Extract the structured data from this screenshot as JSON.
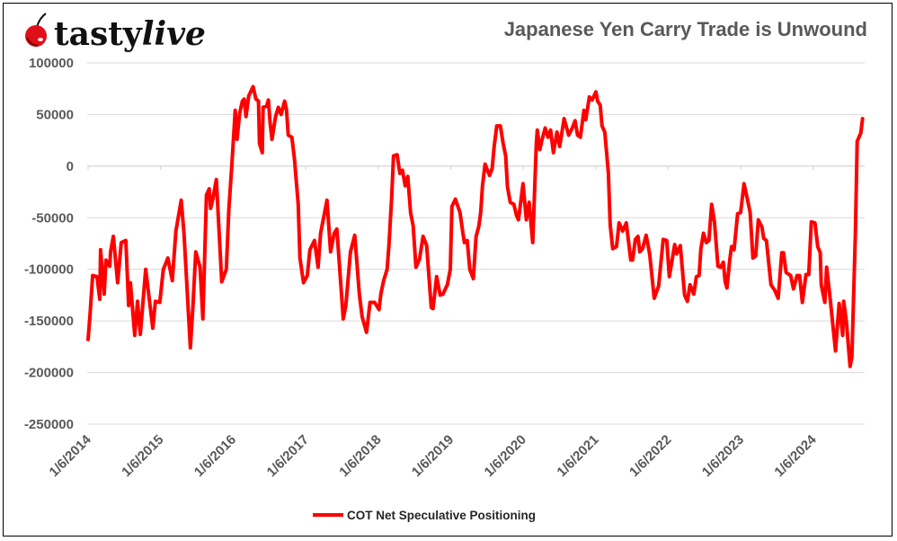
{
  "logo": {
    "text": "tastylive",
    "part1": "tasty",
    "part2": "live"
  },
  "colors": {
    "series": "#ff0000",
    "grid": "#d9d9d9",
    "text": "#595959"
  },
  "chart_data": {
    "type": "line",
    "title": "Japanese Yen Carry Trade is Unwound",
    "xlabel": "",
    "ylabel": "",
    "ylim": [
      -250000,
      100000
    ],
    "yticks": [
      100000,
      50000,
      0,
      -50000,
      -100000,
      -150000,
      -200000,
      -250000
    ],
    "ytick_labels": [
      "100000",
      "50000",
      "0",
      "-50000",
      "-100000",
      "-150000",
      "-200000",
      "-250000"
    ],
    "xlim": [
      "2014-01-06",
      "2024-09-10"
    ],
    "xtick_dates": [
      "2014-01-06",
      "2015-01-06",
      "2016-01-06",
      "2017-01-06",
      "2018-01-06",
      "2019-01-06",
      "2020-01-06",
      "2021-01-06",
      "2022-01-06",
      "2023-01-06",
      "2024-01-06"
    ],
    "xtick_labels": [
      "1/6/2014",
      "1/6/2015",
      "1/6/2016",
      "1/6/2017",
      "1/6/2018",
      "1/6/2019",
      "1/6/2020",
      "1/6/2021",
      "1/6/2022",
      "1/6/2023",
      "1/6/2024"
    ],
    "grid": "horizontal",
    "legend": "bottom",
    "series": [
      {
        "name": "COT Net Speculative Positioning",
        "color": "#ff0000",
        "points": [
          [
            "2014-01-06",
            -168000
          ],
          [
            "2014-01-15",
            -146000
          ],
          [
            "2014-01-29",
            -106000
          ],
          [
            "2014-02-20",
            -107000
          ],
          [
            "2014-03-06",
            -129000
          ],
          [
            "2014-03-10",
            -81000
          ],
          [
            "2014-03-28",
            -124000
          ],
          [
            "2014-04-06",
            -91000
          ],
          [
            "2014-04-25",
            -97000
          ],
          [
            "2014-04-29",
            -83000
          ],
          [
            "2014-05-13",
            -68000
          ],
          [
            "2014-06-04",
            -113000
          ],
          [
            "2014-06-22",
            -74000
          ],
          [
            "2014-07-15",
            -72000
          ],
          [
            "2014-07-29",
            -135000
          ],
          [
            "2014-08-07",
            -113000
          ],
          [
            "2014-08-29",
            -164000
          ],
          [
            "2014-09-12",
            -131000
          ],
          [
            "2014-09-26",
            -163000
          ],
          [
            "2014-10-23",
            -100000
          ],
          [
            "2014-11-28",
            -157000
          ],
          [
            "2014-12-11",
            -131000
          ],
          [
            "2015-01-02",
            -132000
          ],
          [
            "2015-01-20",
            -100000
          ],
          [
            "2015-02-12",
            -89000
          ],
          [
            "2015-03-06",
            -111000
          ],
          [
            "2015-03-24",
            -63000
          ],
          [
            "2015-04-20",
            -33000
          ],
          [
            "2015-05-04",
            -65000
          ],
          [
            "2015-06-05",
            -176000
          ],
          [
            "2015-06-18",
            -135000
          ],
          [
            "2015-07-02",
            -83000
          ],
          [
            "2015-07-24",
            -98000
          ],
          [
            "2015-08-07",
            -148000
          ],
          [
            "2015-08-25",
            -28000
          ],
          [
            "2015-09-08",
            -22000
          ],
          [
            "2015-09-15",
            -41000
          ],
          [
            "2015-09-26",
            -32000
          ],
          [
            "2015-10-14",
            -13000
          ],
          [
            "2015-11-10",
            -112000
          ],
          [
            "2015-12-03",
            -100000
          ],
          [
            "2015-12-16",
            -42000
          ],
          [
            "2015-12-30",
            -2000
          ],
          [
            "2016-01-17",
            54000
          ],
          [
            "2016-01-26",
            26000
          ],
          [
            "2016-02-08",
            51000
          ],
          [
            "2016-02-22",
            63000
          ],
          [
            "2016-03-02",
            65000
          ],
          [
            "2016-03-11",
            48000
          ],
          [
            "2016-03-25",
            68000
          ],
          [
            "2016-04-16",
            77000
          ],
          [
            "2016-04-30",
            65000
          ],
          [
            "2016-05-13",
            63000
          ],
          [
            "2016-05-18",
            22000
          ],
          [
            "2016-06-01",
            13000
          ],
          [
            "2016-06-05",
            57000
          ],
          [
            "2016-06-23",
            58000
          ],
          [
            "2016-07-02",
            64000
          ],
          [
            "2016-07-11",
            41000
          ],
          [
            "2016-07-20",
            26000
          ],
          [
            "2016-08-07",
            48000
          ],
          [
            "2016-08-21",
            57000
          ],
          [
            "2016-09-04",
            50000
          ],
          [
            "2016-09-22",
            63000
          ],
          [
            "2016-10-01",
            55000
          ],
          [
            "2016-10-10",
            30000
          ],
          [
            "2016-10-28",
            28000
          ],
          [
            "2016-11-10",
            7000
          ],
          [
            "2016-11-29",
            -37000
          ],
          [
            "2016-12-08",
            -89000
          ],
          [
            "2016-12-26",
            -113000
          ],
          [
            "2017-01-14",
            -106000
          ],
          [
            "2017-01-27",
            -81000
          ],
          [
            "2017-02-19",
            -72000
          ],
          [
            "2017-03-09",
            -98000
          ],
          [
            "2017-03-22",
            -65000
          ],
          [
            "2017-04-23",
            -33000
          ],
          [
            "2017-05-11",
            -83000
          ],
          [
            "2017-05-29",
            -65000
          ],
          [
            "2017-06-12",
            -61000
          ],
          [
            "2017-07-14",
            -148000
          ],
          [
            "2017-07-27",
            -135000
          ],
          [
            "2017-08-19",
            -83000
          ],
          [
            "2017-09-10",
            -67000
          ],
          [
            "2017-10-03",
            -124000
          ],
          [
            "2017-10-17",
            -146000
          ],
          [
            "2017-11-08",
            -161000
          ],
          [
            "2017-11-26",
            -132000
          ],
          [
            "2017-12-19",
            -132000
          ],
          [
            "2018-01-10",
            -139000
          ],
          [
            "2018-01-19",
            -124000
          ],
          [
            "2018-02-02",
            -111000
          ],
          [
            "2018-02-20",
            -100000
          ],
          [
            "2018-03-01",
            -77000
          ],
          [
            "2018-03-15",
            -30000
          ],
          [
            "2018-03-24",
            10000
          ],
          [
            "2018-04-11",
            11000
          ],
          [
            "2018-04-25",
            -7000
          ],
          [
            "2018-05-08",
            -4000
          ],
          [
            "2018-05-22",
            -19000
          ],
          [
            "2018-06-04",
            -10000
          ],
          [
            "2018-06-18",
            -45000
          ],
          [
            "2018-07-01",
            -58000
          ],
          [
            "2018-07-15",
            -98000
          ],
          [
            "2018-08-02",
            -90000
          ],
          [
            "2018-08-20",
            -68000
          ],
          [
            "2018-09-07",
            -77000
          ],
          [
            "2018-09-30",
            -137000
          ],
          [
            "2018-10-09",
            -138000
          ],
          [
            "2018-10-27",
            -107000
          ],
          [
            "2018-11-14",
            -125000
          ],
          [
            "2018-11-28",
            -124000
          ],
          [
            "2018-12-20",
            -115000
          ],
          [
            "2019-01-04",
            -100000
          ],
          [
            "2019-01-12",
            -39000
          ],
          [
            "2019-01-30",
            -32000
          ],
          [
            "2019-02-22",
            -45000
          ],
          [
            "2019-03-07",
            -63000
          ],
          [
            "2019-03-16",
            -74000
          ],
          [
            "2019-03-30",
            -72000
          ],
          [
            "2019-04-12",
            -100000
          ],
          [
            "2019-04-30",
            -109000
          ],
          [
            "2019-05-14",
            -68000
          ],
          [
            "2019-05-28",
            -58000
          ],
          [
            "2019-06-06",
            -45000
          ],
          [
            "2019-06-15",
            -19000
          ],
          [
            "2019-06-28",
            2000
          ],
          [
            "2019-07-21",
            -9000
          ],
          [
            "2019-08-03",
            -2000
          ],
          [
            "2019-08-13",
            19000
          ],
          [
            "2019-08-26",
            39000
          ],
          [
            "2019-09-13",
            39000
          ],
          [
            "2019-09-27",
            22000
          ],
          [
            "2019-10-10",
            10000
          ],
          [
            "2019-10-19",
            -20000
          ],
          [
            "2019-11-02",
            -35000
          ],
          [
            "2019-11-20",
            -37000
          ],
          [
            "2019-12-04",
            -48000
          ],
          [
            "2019-12-13",
            -52000
          ],
          [
            "2019-12-22",
            -39000
          ],
          [
            "2020-01-05",
            -17000
          ],
          [
            "2020-01-22",
            -52000
          ],
          [
            "2020-02-05",
            -35000
          ],
          [
            "2020-02-23",
            -74000
          ],
          [
            "2020-03-12",
            22000
          ],
          [
            "2020-03-17",
            35000
          ],
          [
            "2020-03-30",
            16000
          ],
          [
            "2020-04-08",
            24000
          ],
          [
            "2020-04-26",
            37000
          ],
          [
            "2020-05-10",
            28000
          ],
          [
            "2020-05-23",
            35000
          ],
          [
            "2020-06-06",
            13000
          ],
          [
            "2020-06-24",
            33000
          ],
          [
            "2020-07-08",
            19000
          ],
          [
            "2020-07-30",
            46000
          ],
          [
            "2020-08-22",
            30000
          ],
          [
            "2020-09-09",
            37000
          ],
          [
            "2020-09-23",
            44000
          ],
          [
            "2020-10-06",
            30000
          ],
          [
            "2020-10-20",
            28000
          ],
          [
            "2020-11-07",
            54000
          ],
          [
            "2020-11-16",
            45000
          ],
          [
            "2020-12-04",
            67000
          ],
          [
            "2020-12-18",
            64000
          ],
          [
            "2021-01-06",
            72000
          ],
          [
            "2021-01-15",
            63000
          ],
          [
            "2021-01-28",
            59000
          ],
          [
            "2021-02-06",
            39000
          ],
          [
            "2021-02-20",
            33000
          ],
          [
            "2021-03-10",
            -7000
          ],
          [
            "2021-03-19",
            -57000
          ],
          [
            "2021-04-01",
            -80000
          ],
          [
            "2021-04-20",
            -78000
          ],
          [
            "2021-05-03",
            -55000
          ],
          [
            "2021-05-21",
            -63000
          ],
          [
            "2021-06-08",
            -55000
          ],
          [
            "2021-07-01",
            -91000
          ],
          [
            "2021-07-10",
            -91000
          ],
          [
            "2021-07-24",
            -71000
          ],
          [
            "2021-08-06",
            -68000
          ],
          [
            "2021-08-15",
            -83000
          ],
          [
            "2021-08-29",
            -80000
          ],
          [
            "2021-09-16",
            -67000
          ],
          [
            "2021-10-04",
            -85000
          ],
          [
            "2021-10-27",
            -128000
          ],
          [
            "2021-11-18",
            -116000
          ],
          [
            "2021-12-11",
            -71000
          ],
          [
            "2021-12-29",
            -72000
          ],
          [
            "2022-01-11",
            -107000
          ],
          [
            "2022-02-07",
            -76000
          ],
          [
            "2022-02-17",
            -85000
          ],
          [
            "2022-03-07",
            -77000
          ],
          [
            "2022-03-29",
            -125000
          ],
          [
            "2022-04-12",
            -131000
          ],
          [
            "2022-04-25",
            -115000
          ],
          [
            "2022-05-14",
            -124000
          ],
          [
            "2022-05-27",
            -107000
          ],
          [
            "2022-06-10",
            -106000
          ],
          [
            "2022-06-19",
            -80000
          ],
          [
            "2022-07-02",
            -65000
          ],
          [
            "2022-07-16",
            -74000
          ],
          [
            "2022-07-29",
            -72000
          ],
          [
            "2022-08-12",
            -37000
          ],
          [
            "2022-08-26",
            -54000
          ],
          [
            "2022-09-13",
            -97000
          ],
          [
            "2022-09-26",
            -98000
          ],
          [
            "2022-10-10",
            -93000
          ],
          [
            "2022-10-19",
            -112000
          ],
          [
            "2022-10-28",
            -118000
          ],
          [
            "2022-11-11",
            -91000
          ],
          [
            "2022-11-20",
            -78000
          ],
          [
            "2022-12-03",
            -81000
          ],
          [
            "2022-12-21",
            -46000
          ],
          [
            "2023-01-05",
            -45000
          ],
          [
            "2023-01-22",
            -17000
          ],
          [
            "2023-02-09",
            -33000
          ],
          [
            "2023-02-22",
            -45000
          ],
          [
            "2023-03-08",
            -89000
          ],
          [
            "2023-03-22",
            -87000
          ],
          [
            "2023-04-04",
            -52000
          ],
          [
            "2023-04-22",
            -59000
          ],
          [
            "2023-05-01",
            -70000
          ],
          [
            "2023-05-15",
            -72000
          ],
          [
            "2023-06-07",
            -115000
          ],
          [
            "2023-06-25",
            -120000
          ],
          [
            "2023-07-13",
            -128000
          ],
          [
            "2023-07-31",
            -84000
          ],
          [
            "2023-08-09",
            -84000
          ],
          [
            "2023-08-22",
            -103000
          ],
          [
            "2023-09-14",
            -106000
          ],
          [
            "2023-09-28",
            -119000
          ],
          [
            "2023-10-16",
            -106000
          ],
          [
            "2023-10-29",
            -106000
          ],
          [
            "2023-11-12",
            -132000
          ],
          [
            "2023-11-30",
            -105000
          ],
          [
            "2023-12-14",
            -105000
          ],
          [
            "2023-12-27",
            -54000
          ],
          [
            "2024-01-14",
            -55000
          ],
          [
            "2024-01-28",
            -78000
          ],
          [
            "2024-02-10",
            -84000
          ],
          [
            "2024-02-15",
            -115000
          ],
          [
            "2024-03-04",
            -132000
          ],
          [
            "2024-03-13",
            -98000
          ],
          [
            "2024-03-31",
            -129000
          ],
          [
            "2024-04-27",
            -179000
          ],
          [
            "2024-05-15",
            -133000
          ],
          [
            "2024-06-02",
            -164000
          ],
          [
            "2024-06-07",
            -131000
          ],
          [
            "2024-06-20",
            -150000
          ],
          [
            "2024-07-09",
            -194000
          ],
          [
            "2024-07-18",
            -185000
          ],
          [
            "2024-08-05",
            -65000
          ],
          [
            "2024-08-14",
            24000
          ],
          [
            "2024-09-01",
            32000
          ],
          [
            "2024-09-10",
            46000
          ]
        ]
      }
    ]
  }
}
